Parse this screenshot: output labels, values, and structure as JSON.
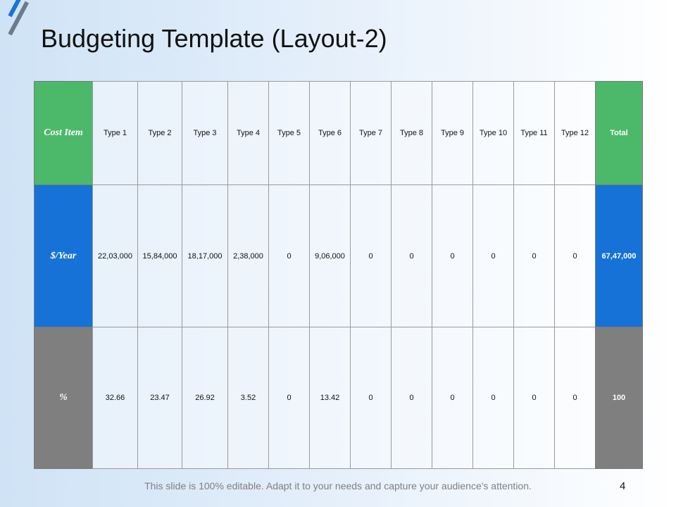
{
  "header": {
    "title": "Budgeting Template (Layout-2)"
  },
  "table": {
    "rows": [
      [
        "Cost Item",
        "Type 1",
        "Type 2",
        "Type 3",
        "Type 4",
        "Type 5",
        "Type 6",
        "Type 7",
        "Type 8",
        "Type 9",
        "Type 10",
        "Type 11",
        "Type 12",
        "Total"
      ],
      [
        "$/Year",
        "22,03,000",
        "15,84,000",
        "18,17,000",
        "2,38,000",
        "0",
        "9,06,000",
        "0",
        "0",
        "0",
        "0",
        "0",
        "0",
        "67,47,000"
      ],
      [
        "%",
        "32.66",
        "23.47",
        "26.92",
        "3.52",
        "0",
        "13.42",
        "0",
        "0",
        "0",
        "0",
        "0",
        "0",
        "100"
      ]
    ]
  },
  "footer": {
    "note": "This slide is 100% editable. Adapt it to your needs and capture your audience's attention.",
    "page": "4"
  }
}
